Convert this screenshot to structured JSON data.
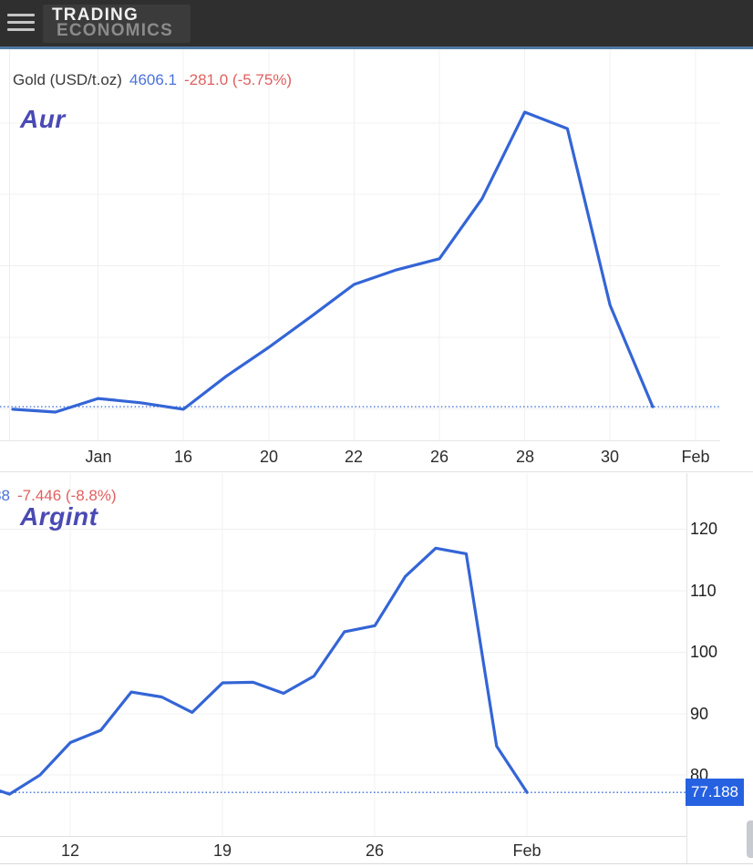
{
  "header": {
    "logo_line1": "TRADING",
    "logo_line2": "ECONOMICS"
  },
  "colors": {
    "line": "#3465d6",
    "blueval": "#4a72da",
    "red": "#e05f5f",
    "wm": "#4a4ab4",
    "badge": "#2561e0",
    "header_border": "#4d7aa3"
  },
  "chart_data": [
    {
      "type": "line",
      "title": "Gold (USD/t.oz)",
      "current_value": "4606.1",
      "change": "-281.0 (-5.75%)",
      "watermark": "Aur",
      "grid": true,
      "legend": "none",
      "x_tick_labels": [
        "Jan",
        "16",
        "20",
        "22",
        "26",
        "28",
        "30",
        "Feb"
      ],
      "x_tick_point_indices": [
        2,
        4,
        6,
        8,
        10,
        12,
        14,
        16
      ],
      "y_tick_labels": [],
      "y_grid_values": [
        4600,
        4800,
        5000,
        5200,
        5400
      ],
      "ylim": [
        4512,
        5606
      ],
      "last_price_line": 4606.1,
      "values": [
        4599,
        4591,
        4629,
        4617,
        4599,
        4691,
        4772,
        4859,
        4948,
        4989,
        5020,
        5188,
        5430,
        5384,
        4890,
        4606.1
      ]
    },
    {
      "type": "line",
      "current_value": "77.188",
      "change": "-7.446 (-8.8%)",
      "watermark": "Argint",
      "axis_badge": "77.188",
      "grid": true,
      "legend": "none",
      "x_tick_labels": [
        "12",
        "19",
        "26",
        "Feb"
      ],
      "x_tick_point_indices": [
        3,
        8,
        13,
        18
      ],
      "y_tick_labels": [
        120,
        110,
        100,
        90,
        80
      ],
      "y_grid_values": [
        120,
        110,
        100,
        90,
        80
      ],
      "ylim": [
        70.1,
        129.1
      ],
      "last_price_line": 77.188,
      "values": [
        78.6,
        76.9,
        80.0,
        85.3,
        87.3,
        93.5,
        92.7,
        90.2,
        95.0,
        95.1,
        93.3,
        96.1,
        103.3,
        104.3,
        112.3,
        116.9,
        116.0,
        84.7,
        77.188
      ]
    }
  ]
}
